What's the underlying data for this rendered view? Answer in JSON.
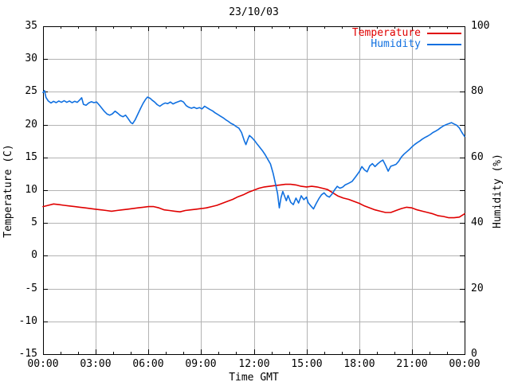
{
  "window": {
    "background": "#ffffff"
  },
  "chart_data": {
    "type": "line",
    "title": "23/10/03",
    "xlabel": "Time GMT",
    "ylabel_left": "Temperature (C)",
    "ylabel_right": "Humidity (%)",
    "x_range_hours": [
      0,
      24
    ],
    "y_left_range": [
      -15,
      35
    ],
    "y_right_range": [
      0,
      100
    ],
    "grid": true,
    "x_major_ticks_hours": [
      0,
      3,
      6,
      9,
      12,
      15,
      18,
      21,
      24
    ],
    "x_tick_labels": [
      "00:00",
      "03:00",
      "06:00",
      "09:00",
      "12:00",
      "15:00",
      "18:00",
      "21:00",
      "00:00"
    ],
    "x_minor_step_hours": 1,
    "y_left_tick_values": [
      35,
      30,
      25,
      20,
      15,
      10,
      5,
      0,
      -5,
      -10,
      -15
    ],
    "y_left_tick_labels": [
      "35",
      "30",
      "25",
      "20",
      "15",
      "10",
      "5",
      "0",
      "-5",
      "-10",
      "-15"
    ],
    "y_right_tick_values": [
      100,
      80,
      60,
      40,
      20,
      0
    ],
    "y_right_tick_labels": [
      "100",
      "80",
      "60",
      "40",
      "20",
      "0"
    ],
    "colors": {
      "axis": "#000000",
      "grid": "#b3b3b3",
      "temperature": "#e00000",
      "humidity": "#1070e0"
    },
    "legend": {
      "position": "top-right",
      "entries": [
        {
          "label": "Temperature",
          "color_key": "temperature"
        },
        {
          "label": "Humidity",
          "color_key": "humidity"
        }
      ]
    },
    "series": [
      {
        "name": "Temperature",
        "axis": "left",
        "color_key": "temperature",
        "points": [
          [
            0,
            7.5
          ],
          [
            0.3,
            7.7
          ],
          [
            0.6,
            7.9
          ],
          [
            0.9,
            7.8
          ],
          [
            1.2,
            7.7
          ],
          [
            1.5,
            7.6
          ],
          [
            1.8,
            7.5
          ],
          [
            2.1,
            7.4
          ],
          [
            2.4,
            7.3
          ],
          [
            2.7,
            7.2
          ],
          [
            3,
            7.1
          ],
          [
            3.3,
            7
          ],
          [
            3.6,
            6.9
          ],
          [
            3.9,
            6.8
          ],
          [
            4.2,
            6.9
          ],
          [
            4.5,
            7
          ],
          [
            4.8,
            7.1
          ],
          [
            5.1,
            7.2
          ],
          [
            5.4,
            7.3
          ],
          [
            5.7,
            7.4
          ],
          [
            6,
            7.5
          ],
          [
            6.3,
            7.5
          ],
          [
            6.6,
            7.3
          ],
          [
            6.9,
            7
          ],
          [
            7.2,
            6.9
          ],
          [
            7.5,
            6.8
          ],
          [
            7.8,
            6.7
          ],
          [
            8.1,
            6.9
          ],
          [
            8.4,
            7
          ],
          [
            8.7,
            7.1
          ],
          [
            9,
            7.2
          ],
          [
            9.3,
            7.3
          ],
          [
            9.6,
            7.5
          ],
          [
            9.9,
            7.7
          ],
          [
            10.2,
            8
          ],
          [
            10.5,
            8.3
          ],
          [
            10.8,
            8.6
          ],
          [
            11.1,
            9
          ],
          [
            11.4,
            9.3
          ],
          [
            11.7,
            9.7
          ],
          [
            12,
            10
          ],
          [
            12.3,
            10.3
          ],
          [
            12.6,
            10.5
          ],
          [
            12.9,
            10.6
          ],
          [
            13.2,
            10.7
          ],
          [
            13.5,
            10.8
          ],
          [
            13.8,
            10.9
          ],
          [
            14.1,
            10.9
          ],
          [
            14.4,
            10.8
          ],
          [
            14.7,
            10.6
          ],
          [
            15,
            10.5
          ],
          [
            15.3,
            10.6
          ],
          [
            15.6,
            10.5
          ],
          [
            15.9,
            10.3
          ],
          [
            16.2,
            10.1
          ],
          [
            16.5,
            9.6
          ],
          [
            16.8,
            9.1
          ],
          [
            17.1,
            8.8
          ],
          [
            17.4,
            8.6
          ],
          [
            17.7,
            8.3
          ],
          [
            18,
            8
          ],
          [
            18.3,
            7.6
          ],
          [
            18.6,
            7.3
          ],
          [
            18.9,
            7
          ],
          [
            19.2,
            6.8
          ],
          [
            19.5,
            6.6
          ],
          [
            19.8,
            6.6
          ],
          [
            20.1,
            6.9
          ],
          [
            20.4,
            7.2
          ],
          [
            20.7,
            7.4
          ],
          [
            21,
            7.3
          ],
          [
            21.3,
            7
          ],
          [
            21.6,
            6.8
          ],
          [
            21.9,
            6.6
          ],
          [
            22.2,
            6.4
          ],
          [
            22.5,
            6.1
          ],
          [
            22.8,
            6
          ],
          [
            23.1,
            5.8
          ],
          [
            23.4,
            5.8
          ],
          [
            23.7,
            5.9
          ],
          [
            24,
            6.4
          ]
        ]
      },
      {
        "name": "Humidity",
        "axis": "right",
        "color_key": "humidity",
        "points": [
          [
            0,
            79.8
          ],
          [
            0.08,
            80.4
          ],
          [
            0.17,
            78.3
          ],
          [
            0.3,
            77.2
          ],
          [
            0.45,
            76.6
          ],
          [
            0.6,
            77.1
          ],
          [
            0.75,
            76.7
          ],
          [
            0.9,
            77.2
          ],
          [
            1.05,
            76.8
          ],
          [
            1.2,
            77.3
          ],
          [
            1.35,
            76.8
          ],
          [
            1.5,
            77.2
          ],
          [
            1.65,
            76.7
          ],
          [
            1.8,
            77.1
          ],
          [
            1.95,
            76.8
          ],
          [
            2.1,
            77.6
          ],
          [
            2.2,
            78.2
          ],
          [
            2.3,
            76.2
          ],
          [
            2.45,
            75.9
          ],
          [
            2.6,
            76.6
          ],
          [
            2.75,
            77
          ],
          [
            2.9,
            76.7
          ],
          [
            3.05,
            76.9
          ],
          [
            3.2,
            76
          ],
          [
            3.35,
            75
          ],
          [
            3.5,
            74
          ],
          [
            3.65,
            73.2
          ],
          [
            3.8,
            72.9
          ],
          [
            3.95,
            73.3
          ],
          [
            4.1,
            74.1
          ],
          [
            4.25,
            73.5
          ],
          [
            4.4,
            72.8
          ],
          [
            4.55,
            72.4
          ],
          [
            4.7,
            72.9
          ],
          [
            4.85,
            71.8
          ],
          [
            5,
            70.6
          ],
          [
            5.1,
            70.3
          ],
          [
            5.25,
            71.5
          ],
          [
            5.4,
            73.2
          ],
          [
            5.55,
            74.9
          ],
          [
            5.7,
            76.5
          ],
          [
            5.85,
            77.8
          ],
          [
            5.95,
            78.4
          ],
          [
            6.1,
            78
          ],
          [
            6.2,
            77.5
          ],
          [
            6.35,
            76.9
          ],
          [
            6.5,
            76.1
          ],
          [
            6.65,
            75.6
          ],
          [
            6.8,
            76.2
          ],
          [
            6.95,
            76.6
          ],
          [
            7.1,
            76.4
          ],
          [
            7.25,
            76.9
          ],
          [
            7.4,
            76.3
          ],
          [
            7.55,
            76.7
          ],
          [
            7.7,
            77
          ],
          [
            7.85,
            77.3
          ],
          [
            8,
            76.9
          ],
          [
            8.15,
            75.8
          ],
          [
            8.3,
            75.3
          ],
          [
            8.45,
            75
          ],
          [
            8.6,
            75.3
          ],
          [
            8.75,
            74.9
          ],
          [
            8.9,
            75.2
          ],
          [
            9.05,
            74.8
          ],
          [
            9.2,
            75.6
          ],
          [
            9.35,
            75.1
          ],
          [
            9.5,
            74.6
          ],
          [
            9.65,
            74.2
          ],
          [
            9.8,
            73.6
          ],
          [
            9.95,
            73.1
          ],
          [
            10.1,
            72.6
          ],
          [
            10.25,
            72.1
          ],
          [
            10.4,
            71.5
          ],
          [
            10.55,
            71
          ],
          [
            10.7,
            70.4
          ],
          [
            10.85,
            70
          ],
          [
            11,
            69.4
          ],
          [
            11.15,
            68.9
          ],
          [
            11.3,
            67.6
          ],
          [
            11.45,
            65.2
          ],
          [
            11.55,
            63.9
          ],
          [
            11.65,
            65.4
          ],
          [
            11.75,
            66.7
          ],
          [
            11.9,
            66
          ],
          [
            12.05,
            65.1
          ],
          [
            12.2,
            64
          ],
          [
            12.35,
            63
          ],
          [
            12.5,
            62
          ],
          [
            12.65,
            60.8
          ],
          [
            12.8,
            59.4
          ],
          [
            12.95,
            58
          ],
          [
            13.1,
            55.2
          ],
          [
            13.25,
            51.5
          ],
          [
            13.35,
            49
          ],
          [
            13.45,
            44.6
          ],
          [
            13.55,
            47.8
          ],
          [
            13.65,
            49.6
          ],
          [
            13.75,
            48.2
          ],
          [
            13.85,
            46.8
          ],
          [
            13.95,
            48.4
          ],
          [
            14.1,
            46.3
          ],
          [
            14.25,
            45.6
          ],
          [
            14.4,
            47.6
          ],
          [
            14.55,
            46.1
          ],
          [
            14.7,
            48.3
          ],
          [
            14.85,
            47.1
          ],
          [
            15,
            47.9
          ],
          [
            15.1,
            46.2
          ],
          [
            15.25,
            45.2
          ],
          [
            15.4,
            44.3
          ],
          [
            15.55,
            45.9
          ],
          [
            15.7,
            47.4
          ],
          [
            15.85,
            48.6
          ],
          [
            16,
            49.2
          ],
          [
            16.15,
            48.3
          ],
          [
            16.3,
            47.9
          ],
          [
            16.45,
            48.8
          ],
          [
            16.6,
            50.1
          ],
          [
            16.75,
            51.2
          ],
          [
            16.9,
            50.6
          ],
          [
            17.05,
            50.9
          ],
          [
            17.2,
            51.6
          ],
          [
            17.4,
            52.1
          ],
          [
            17.6,
            52.7
          ],
          [
            17.8,
            54.1
          ],
          [
            18,
            55.6
          ],
          [
            18.15,
            57.2
          ],
          [
            18.3,
            56.2
          ],
          [
            18.45,
            55.6
          ],
          [
            18.6,
            57.4
          ],
          [
            18.75,
            58.1
          ],
          [
            18.9,
            57.2
          ],
          [
            19.05,
            58
          ],
          [
            19.2,
            58.7
          ],
          [
            19.35,
            59.2
          ],
          [
            19.5,
            57.6
          ],
          [
            19.65,
            55.8
          ],
          [
            19.8,
            57.3
          ],
          [
            19.95,
            57.6
          ],
          [
            20.1,
            57.9
          ],
          [
            20.25,
            58.8
          ],
          [
            20.4,
            60.1
          ],
          [
            20.55,
            61
          ],
          [
            20.7,
            61.7
          ],
          [
            20.85,
            62.4
          ],
          [
            21,
            63.2
          ],
          [
            21.15,
            63.9
          ],
          [
            21.3,
            64.5
          ],
          [
            21.45,
            65
          ],
          [
            21.6,
            65.6
          ],
          [
            21.75,
            66.1
          ],
          [
            21.9,
            66.5
          ],
          [
            22.05,
            67
          ],
          [
            22.2,
            67.6
          ],
          [
            22.35,
            68
          ],
          [
            22.5,
            68.5
          ],
          [
            22.65,
            69.1
          ],
          [
            22.8,
            69.6
          ],
          [
            22.95,
            70
          ],
          [
            23.1,
            70.3
          ],
          [
            23.25,
            70.6
          ],
          [
            23.4,
            70.2
          ],
          [
            23.55,
            69.8
          ],
          [
            23.7,
            69
          ],
          [
            23.85,
            67.6
          ],
          [
            24,
            66.4
          ]
        ]
      }
    ]
  }
}
